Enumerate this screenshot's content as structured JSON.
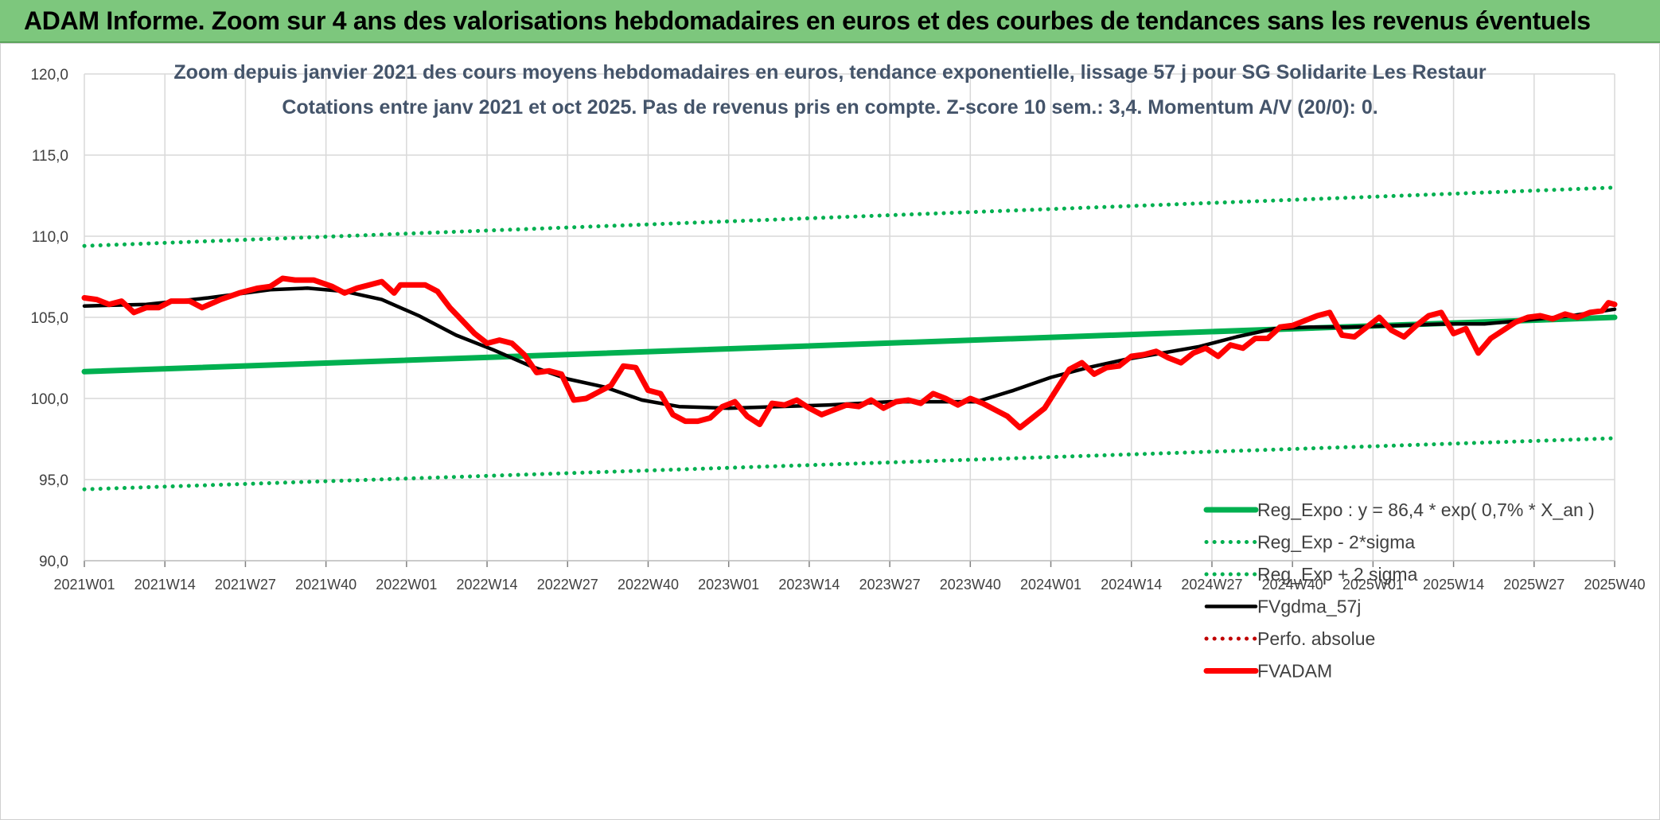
{
  "banner": {
    "title": "ADAM Informe. Zoom sur 4 ans des valorisations hebdomadaires en euros et des courbes de tendances sans les revenus éventuels"
  },
  "colors": {
    "banner_bg": "#7dc77d",
    "reg_green": "#00b050",
    "fv_black": "#000000",
    "fvadam_red": "#ff0000",
    "perfo_red": "#c00000",
    "grid": "#d9d9d9"
  },
  "chart_data": {
    "type": "line",
    "title": "Zoom depuis janvier 2021 des cours moyens hebdomadaires en euros, tendance exponentielle, lissage 57 j pour SG Solidarite Les Restaur",
    "subtitle": "Cotations entre janv 2021 et oct 2025. Pas de revenus pris en compte. Z-score 10 sem.: 3,4. Momentum A/V (20/0): 0.",
    "xlabel": "",
    "ylabel": "",
    "ylim": [
      90,
      120
    ],
    "yticks": [
      "120,0",
      "115,0",
      "110,0",
      "105,0",
      "100,0",
      "95,0",
      "90,0"
    ],
    "ytick_values": [
      120,
      115,
      110,
      105,
      100,
      95,
      90
    ],
    "xlim": [
      0,
      247
    ],
    "xticks": [
      "2021W01",
      "2021W14",
      "2021W27",
      "2021W40",
      "2022W01",
      "2022W14",
      "2022W27",
      "2022W40",
      "2023W01",
      "2023W14",
      "2023W27",
      "2023W40",
      "2024W01",
      "2024W14",
      "2024W27",
      "2024W40",
      "2025W01",
      "2025W14",
      "2025W27",
      "2025W40"
    ],
    "xtick_indices": [
      0,
      13,
      26,
      39,
      52,
      65,
      78,
      91,
      104,
      117,
      130,
      143,
      156,
      169,
      182,
      195,
      208,
      221,
      234,
      247
    ],
    "grid": true,
    "legend_position": "bottom-right",
    "series": [
      {
        "name": "Reg_Expo : y = 86,4 * exp( 0,7% *  X_an )",
        "style": "solid-thick",
        "color": "#00b050",
        "points": [
          [
            0,
            101.65
          ],
          [
            247,
            105.0
          ]
        ]
      },
      {
        "name": "Reg_Exp - 2*sigma",
        "style": "dotted",
        "color": "#00b050",
        "points": [
          [
            0,
            94.4
          ],
          [
            247,
            97.55
          ]
        ]
      },
      {
        "name": "Reg_Exp + 2 sigma",
        "style": "dotted",
        "color": "#00b050",
        "points": [
          [
            0,
            109.4
          ],
          [
            247,
            113.0
          ]
        ]
      },
      {
        "name": "FVgdma_57j",
        "style": "solid",
        "color": "#000000",
        "points": [
          [
            0,
            105.7
          ],
          [
            10,
            105.8
          ],
          [
            20,
            106.2
          ],
          [
            30,
            106.7
          ],
          [
            36,
            106.8
          ],
          [
            42,
            106.6
          ],
          [
            48,
            106.1
          ],
          [
            54,
            105.1
          ],
          [
            60,
            103.9
          ],
          [
            66,
            103.0
          ],
          [
            72,
            102.0
          ],
          [
            78,
            101.2
          ],
          [
            84,
            100.7
          ],
          [
            90,
            99.9
          ],
          [
            96,
            99.5
          ],
          [
            104,
            99.4
          ],
          [
            112,
            99.5
          ],
          [
            120,
            99.6
          ],
          [
            130,
            99.8
          ],
          [
            138,
            99.8
          ],
          [
            144,
            99.8
          ],
          [
            150,
            100.5
          ],
          [
            156,
            101.3
          ],
          [
            162,
            101.9
          ],
          [
            168,
            102.4
          ],
          [
            174,
            102.8
          ],
          [
            180,
            103.2
          ],
          [
            186,
            103.8
          ],
          [
            192,
            104.3
          ],
          [
            198,
            104.4
          ],
          [
            204,
            104.4
          ],
          [
            212,
            104.5
          ],
          [
            220,
            104.6
          ],
          [
            226,
            104.6
          ],
          [
            232,
            104.8
          ],
          [
            240,
            105.1
          ],
          [
            247,
            105.5
          ]
        ]
      },
      {
        "name": "Perfo. absolue",
        "style": "dotted",
        "color": "#c00000",
        "points": []
      },
      {
        "name": "FVADAM",
        "style": "solid-thick",
        "color": "#ff0000",
        "points": [
          [
            0,
            106.2
          ],
          [
            2,
            106.1
          ],
          [
            4,
            105.8
          ],
          [
            6,
            106.0
          ],
          [
            8,
            105.3
          ],
          [
            10,
            105.6
          ],
          [
            12,
            105.6
          ],
          [
            14,
            106.0
          ],
          [
            17,
            106.0
          ],
          [
            19,
            105.6
          ],
          [
            22,
            106.1
          ],
          [
            25,
            106.5
          ],
          [
            28,
            106.8
          ],
          [
            30,
            106.9
          ],
          [
            32,
            107.4
          ],
          [
            34,
            107.3
          ],
          [
            37,
            107.3
          ],
          [
            40,
            106.9
          ],
          [
            42,
            106.5
          ],
          [
            44,
            106.8
          ],
          [
            46,
            107.0
          ],
          [
            48,
            107.2
          ],
          [
            50,
            106.5
          ],
          [
            51,
            107.0
          ],
          [
            53,
            107.0
          ],
          [
            55,
            107.0
          ],
          [
            57,
            106.6
          ],
          [
            59,
            105.6
          ],
          [
            61,
            104.8
          ],
          [
            63,
            104.0
          ],
          [
            65,
            103.4
          ],
          [
            67,
            103.6
          ],
          [
            69,
            103.4
          ],
          [
            71,
            102.7
          ],
          [
            73,
            101.6
          ],
          [
            75,
            101.7
          ],
          [
            77,
            101.5
          ],
          [
            79,
            99.9
          ],
          [
            81,
            100.0
          ],
          [
            83,
            100.4
          ],
          [
            85,
            100.8
          ],
          [
            87,
            102.0
          ],
          [
            89,
            101.9
          ],
          [
            91,
            100.5
          ],
          [
            93,
            100.3
          ],
          [
            95,
            99.0
          ],
          [
            97,
            98.6
          ],
          [
            99,
            98.6
          ],
          [
            101,
            98.8
          ],
          [
            103,
            99.5
          ],
          [
            105,
            99.8
          ],
          [
            107,
            98.9
          ],
          [
            109,
            98.4
          ],
          [
            111,
            99.7
          ],
          [
            113,
            99.6
          ],
          [
            115,
            99.9
          ],
          [
            117,
            99.4
          ],
          [
            119,
            99.0
          ],
          [
            121,
            99.3
          ],
          [
            123,
            99.6
          ],
          [
            125,
            99.5
          ],
          [
            127,
            99.9
          ],
          [
            129,
            99.4
          ],
          [
            131,
            99.8
          ],
          [
            133,
            99.9
          ],
          [
            135,
            99.7
          ],
          [
            137,
            100.3
          ],
          [
            139,
            100.0
          ],
          [
            141,
            99.6
          ],
          [
            143,
            100.0
          ],
          [
            145,
            99.7
          ],
          [
            147,
            99.3
          ],
          [
            149,
            98.9
          ],
          [
            151,
            98.2
          ],
          [
            153,
            98.8
          ],
          [
            155,
            99.4
          ],
          [
            157,
            100.6
          ],
          [
            159,
            101.8
          ],
          [
            161,
            102.2
          ],
          [
            163,
            101.5
          ],
          [
            165,
            101.9
          ],
          [
            167,
            102.0
          ],
          [
            169,
            102.6
          ],
          [
            171,
            102.7
          ],
          [
            173,
            102.9
          ],
          [
            175,
            102.5
          ],
          [
            177,
            102.2
          ],
          [
            179,
            102.8
          ],
          [
            181,
            103.1
          ],
          [
            183,
            102.6
          ],
          [
            185,
            103.3
          ],
          [
            187,
            103.1
          ],
          [
            189,
            103.7
          ],
          [
            191,
            103.7
          ],
          [
            193,
            104.4
          ],
          [
            195,
            104.5
          ],
          [
            197,
            104.8
          ],
          [
            199,
            105.1
          ],
          [
            201,
            105.3
          ],
          [
            203,
            103.9
          ],
          [
            205,
            103.8
          ],
          [
            207,
            104.4
          ],
          [
            209,
            105.0
          ],
          [
            211,
            104.2
          ],
          [
            213,
            103.8
          ],
          [
            215,
            104.5
          ],
          [
            217,
            105.1
          ],
          [
            219,
            105.3
          ],
          [
            221,
            104.0
          ],
          [
            223,
            104.3
          ],
          [
            225,
            102.8
          ],
          [
            227,
            103.7
          ],
          [
            229,
            104.2
          ],
          [
            231,
            104.7
          ],
          [
            233,
            105.0
          ],
          [
            235,
            105.1
          ],
          [
            237,
            104.9
          ],
          [
            239,
            105.2
          ],
          [
            241,
            105.0
          ],
          [
            243,
            105.3
          ],
          [
            245,
            105.4
          ],
          [
            246,
            105.9
          ],
          [
            247,
            105.8
          ]
        ]
      }
    ]
  }
}
